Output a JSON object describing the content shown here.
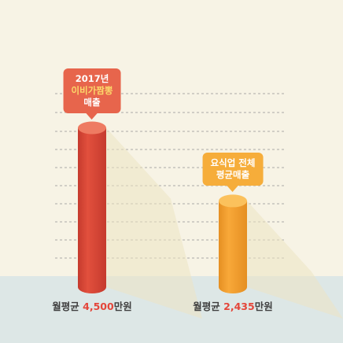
{
  "colors": {
    "background": "#f7f3e5",
    "ground": "#dde7e6",
    "gridline": "#8c8c8c",
    "shadow": "#ece3c3",
    "accent_number": "#e4463a",
    "highlight_text": "#fcd86a"
  },
  "chart_data": {
    "type": "bar",
    "unit": "만원",
    "ylim": [
      0,
      5000
    ],
    "grid": true,
    "legend": "none",
    "categories": [
      "2017년 이비가짬뽕 매출",
      "요식업 전체 평균매출"
    ],
    "values": [
      4500,
      2435
    ],
    "bars": [
      {
        "callout_lines": [
          "2017년",
          "이비가짬뽕",
          "매출"
        ],
        "callout_highlight_line": 1,
        "label_prefix": "월평균 ",
        "label_value": "4,500",
        "label_suffix": "만원",
        "color": "#e2503d",
        "color_dark": "#c53a2d",
        "color_top": "#ee7b62",
        "callout_color": "#e7654c"
      },
      {
        "callout_lines": [
          "요식업 전체",
          "평균매출"
        ],
        "callout_highlight_line": -1,
        "label_prefix": "월평균 ",
        "label_value": "2,435",
        "label_suffix": "만원",
        "color": "#f8a839",
        "color_dark": "#e58f22",
        "color_top": "#fbc15c",
        "callout_color": "#f6ad3a"
      }
    ]
  }
}
